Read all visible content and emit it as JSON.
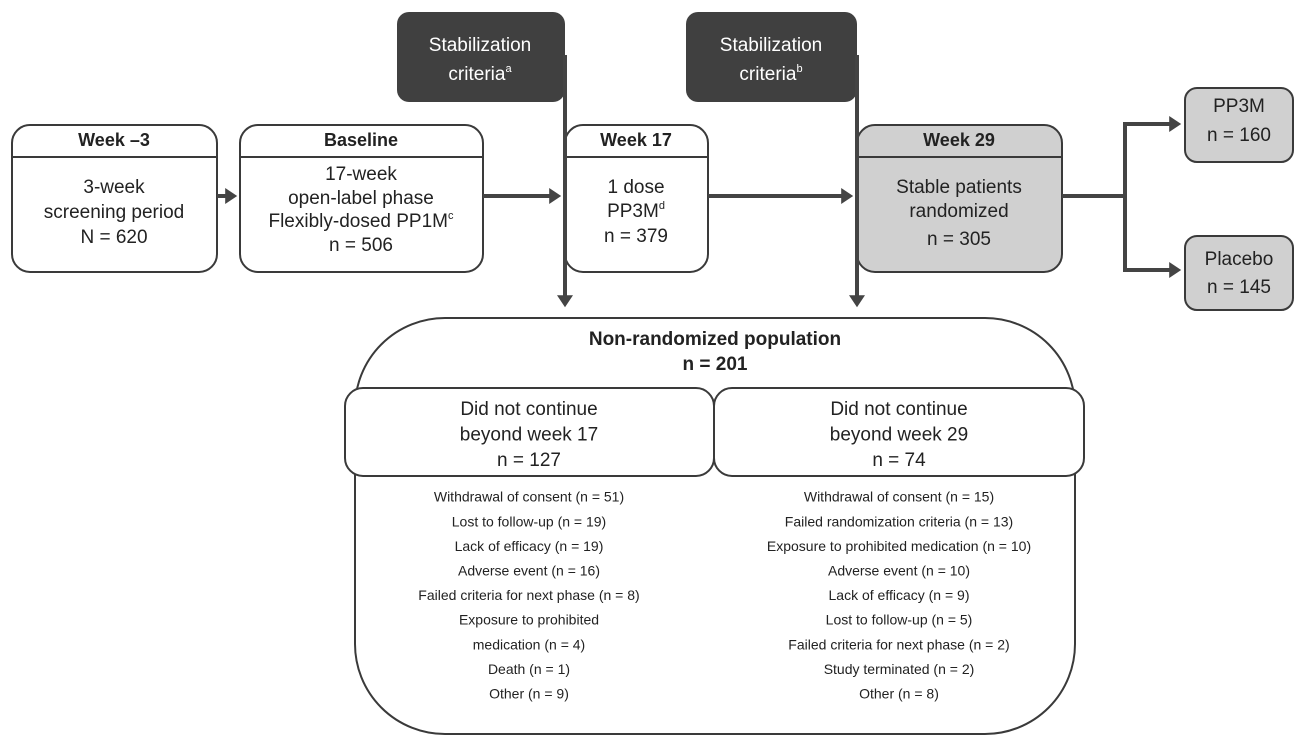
{
  "stabilization": [
    {
      "lines": [
        "Stabilization",
        {
          "text": "criteria",
          "sup": "a"
        }
      ]
    },
    {
      "lines": [
        "Stabilization",
        {
          "text": "criteria",
          "sup": "b"
        }
      ]
    }
  ],
  "phases": [
    {
      "header": "Week –3",
      "lines": [
        "3-week",
        "screening period",
        "N = 620"
      ]
    },
    {
      "header": "Baseline",
      "lines": [
        "17-week",
        "open-label phase",
        {
          "text": "Flexibly-dosed PP1M",
          "sup": "c"
        },
        "n = 506"
      ]
    },
    {
      "header": "Week 17",
      "lines": [
        "1 dose",
        {
          "text": "PP3M",
          "sup": "d"
        },
        "n = 379"
      ]
    },
    {
      "header": "Week 29",
      "lines": [
        "Stable patients",
        "randomized",
        "n = 305"
      ]
    }
  ],
  "arms": [
    {
      "lines": [
        "PP3M",
        "n = 160"
      ]
    },
    {
      "lines": [
        "Placebo",
        "n = 145"
      ]
    }
  ],
  "non_randomized": {
    "title": "Non-randomized population",
    "n": "n = 201",
    "groups": [
      {
        "lines": [
          "Did not continue",
          "beyond week 17",
          "n = 127"
        ],
        "reasons": [
          "Withdrawal of consent (n = 51)",
          "Lost to follow-up (n = 19)",
          "Lack of efficacy (n = 19)",
          "Adverse event (n = 16)",
          "Failed criteria for next phase (n = 8)",
          "Exposure to prohibited",
          "medication (n = 4)",
          "Death (n = 1)",
          "Other (n = 9)"
        ]
      },
      {
        "lines": [
          "Did not continue",
          "beyond week 29",
          "n = 74"
        ],
        "reasons": [
          "Withdrawal of consent (n = 15)",
          "Failed randomization criteria (n = 13)",
          "Exposure to prohibited medication (n = 10)",
          "Adverse event (n = 10)",
          "Lack of efficacy (n = 9)",
          "Lost to follow-up (n = 5)",
          "Failed criteria for next phase (n = 2)",
          "Study terminated (n = 2)",
          "Other (n = 8)"
        ]
      }
    ]
  }
}
